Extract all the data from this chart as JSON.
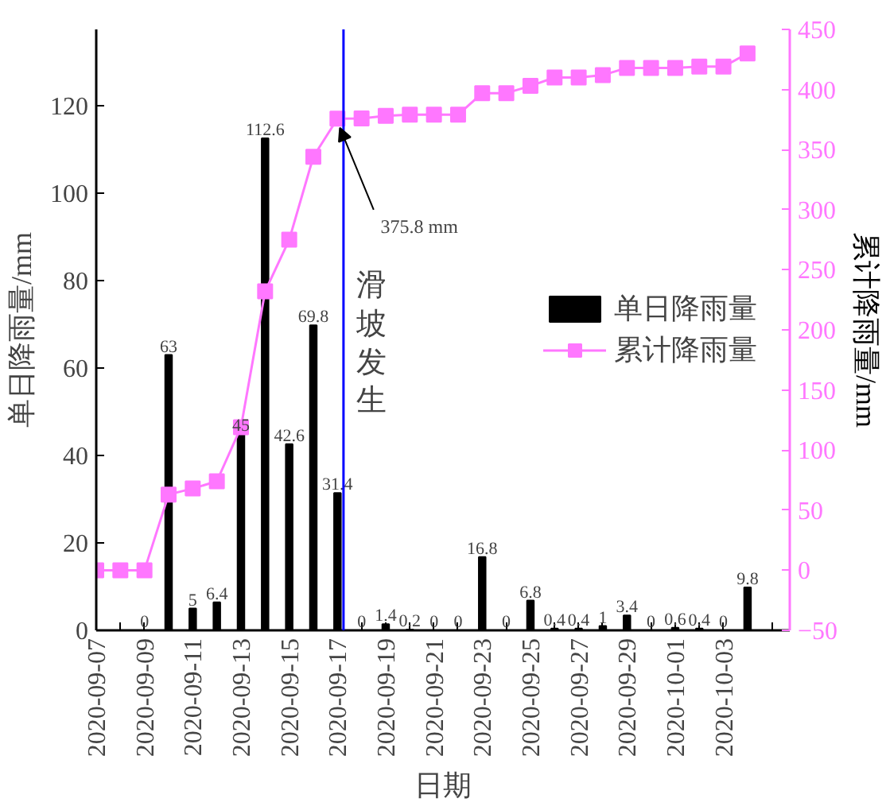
{
  "chart_data": {
    "type": "bar",
    "xlabel": "日期",
    "ylabel": "单日降雨量/mm",
    "y2label": "累计降雨量/mm",
    "x": [
      "2020-09-07",
      "2020-09-08",
      "2020-09-09",
      "2020-09-10",
      "2020-09-11",
      "2020-09-12",
      "2020-09-13",
      "2020-09-14",
      "2020-09-15",
      "2020-09-16",
      "2020-09-17",
      "2020-09-18",
      "2020-09-19",
      "2020-09-20",
      "2020-09-21",
      "2020-09-22",
      "2020-09-23",
      "2020-09-24",
      "2020-09-25",
      "2020-09-26",
      "2020-09-27",
      "2020-09-28",
      "2020-09-29",
      "2020-09-30",
      "2020-10-01",
      "2020-10-02",
      "2020-10-03",
      "2020-10-04"
    ],
    "series": [
      {
        "name": "单日降雨量",
        "color": "#000000",
        "values": [
          null,
          null,
          0,
          63,
          5,
          6.4,
          45,
          112.6,
          42.6,
          69.8,
          31.4,
          0,
          1.4,
          0.2,
          0,
          0,
          16.8,
          0,
          6.8,
          0.4,
          0.4,
          1,
          3.4,
          0,
          0.6,
          0.4,
          0,
          9.8
        ],
        "value_labels": [
          null,
          null,
          "0",
          "63",
          "5",
          "6.4",
          "45",
          "112.6",
          "42.6",
          "69.8",
          "31.4",
          "0",
          "1.4",
          "0.2",
          "0",
          "0",
          "16.8",
          "0",
          "6.8",
          "0.4",
          "0.4",
          "1",
          "3.4",
          "0",
          "0.6",
          "0.4",
          "0",
          "9.8"
        ]
      },
      {
        "name": "累计降雨量",
        "type": "line",
        "axis": "y2",
        "marker": "square",
        "color": "#ff77ff",
        "values": [
          0,
          0,
          0,
          63,
          68,
          74,
          119,
          232,
          275,
          344,
          375.8,
          376,
          378,
          379,
          379,
          379,
          397,
          397,
          403,
          410,
          410,
          412,
          418,
          418,
          418,
          419,
          419,
          430
        ]
      }
    ],
    "xlim": [
      "2020-09-07",
      "2020-10-05T18:00"
    ],
    "xticks": [
      "2020-09-07",
      {
        "value": "2020-09-08",
        "label": null
      },
      "2020-09-09",
      {
        "value": "2020-09-10",
        "label": null
      },
      "2020-09-11",
      {
        "value": "2020-09-12",
        "label": null
      },
      "2020-09-13",
      {
        "value": "2020-09-14",
        "label": null
      },
      "2020-09-15",
      {
        "value": "2020-09-16",
        "label": null
      },
      "2020-09-17",
      {
        "value": "2020-09-18",
        "label": null
      },
      "2020-09-19",
      {
        "value": "2020-09-20",
        "label": null
      },
      "2020-09-21",
      {
        "value": "2020-09-22",
        "label": null
      },
      "2020-09-23",
      {
        "value": "2020-09-24",
        "label": null
      },
      "2020-09-25",
      {
        "value": "2020-09-26",
        "label": null
      },
      "2020-09-27",
      {
        "value": "2020-09-28",
        "label": null
      },
      "2020-09-29",
      {
        "value": "2020-09-30",
        "label": null
      },
      "2020-10-01",
      {
        "value": "2020-10-02",
        "label": null
      },
      "2020-10-03",
      {
        "value": "2020-10-04",
        "label": null
      },
      {
        "value": "2020-10-05",
        "label": null
      }
    ],
    "ylim": [
      0,
      137.5
    ],
    "yticks": [
      0,
      20,
      40,
      60,
      80,
      100,
      120
    ],
    "y2lim": [
      -50,
      450
    ],
    "y2ticks": [
      -50,
      0,
      50,
      100,
      150,
      200,
      250,
      300,
      350,
      400,
      450
    ],
    "ref_lines": [
      {
        "axis": "x",
        "value": "2020-09-17T06:00",
        "label": "滑坡发生",
        "color": "#0000ff"
      }
    ],
    "annotations": [
      {
        "text": "375.8 mm",
        "x": "2020-09-17",
        "y": 117
      }
    ],
    "legend": "right",
    "grid": false
  }
}
